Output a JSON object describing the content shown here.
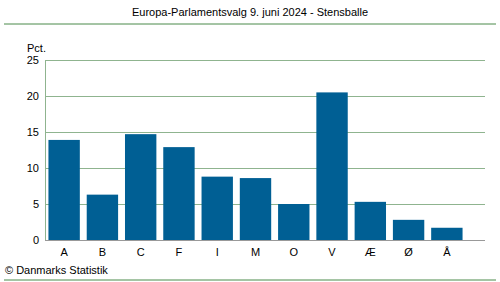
{
  "chart_data": {
    "type": "bar",
    "title": "Europa-Parlamentsvalg 9. juni 2024 - Stensballe",
    "ylabel": "Pct.",
    "annotation": "© Danmarks Statistik",
    "categories": [
      "A",
      "B",
      "C",
      "F",
      "I",
      "M",
      "O",
      "V",
      "Æ",
      "Ø",
      "Å"
    ],
    "values": [
      13.9,
      6.3,
      14.7,
      12.9,
      8.8,
      8.6,
      5.0,
      20.5,
      5.3,
      2.8,
      1.7
    ],
    "color": "#005f94",
    "ylim": [
      0,
      25
    ],
    "yticks": [
      0,
      5,
      10,
      15,
      20,
      25
    ],
    "grid": true
  }
}
